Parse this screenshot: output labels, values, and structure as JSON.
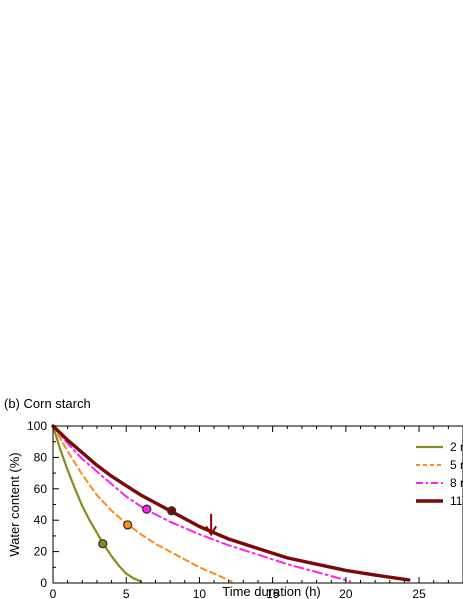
{
  "panel_label": "(b) Corn starch",
  "colors": {
    "s2": "#8a8a1f",
    "s5": "#ff8c1a",
    "s8": "#ff22ee",
    "s11": "#7a0a0a",
    "axis": "#000000",
    "arrow": "#8b0000"
  },
  "chart_data": {
    "type": "line",
    "title": "",
    "xlabel": "Time duration (h)",
    "ylabel": "Water content (%)",
    "xlim": [
      0,
      28
    ],
    "ylim": [
      0,
      100
    ],
    "x_ticks": [
      0,
      5,
      10,
      15,
      20,
      25
    ],
    "y_ticks": [
      0,
      20,
      40,
      60,
      80,
      100
    ],
    "grid": false,
    "legend_position": "right",
    "series": [
      {
        "name": "2 r",
        "color": "#8a8a1f",
        "dash": "solid",
        "x": [
          0,
          0.5,
          1,
          1.5,
          2,
          2.5,
          3,
          3.5,
          4,
          4.5,
          5,
          5.5,
          6
        ],
        "y": [
          100,
          85,
          72,
          60,
          49,
          40,
          32,
          24,
          17,
          11,
          6,
          3,
          1
        ],
        "marker": {
          "x": 3.4,
          "y": 25
        }
      },
      {
        "name": "5 r",
        "color": "#ff8c1a",
        "dash": "dashed",
        "x": [
          0,
          1,
          2,
          3,
          4,
          5,
          6,
          7,
          8,
          9,
          10,
          11,
          12.2
        ],
        "y": [
          100,
          84,
          69,
          56,
          46,
          38,
          31,
          25,
          20,
          15,
          10,
          6,
          1
        ],
        "marker": {
          "x": 5.1,
          "y": 37
        }
      },
      {
        "name": "8 r",
        "color": "#ff22ee",
        "dash": "dashdot",
        "x": [
          0,
          1,
          2,
          3,
          4,
          5,
          6.3,
          8,
          10,
          12,
          14,
          16,
          18,
          20.3
        ],
        "y": [
          100,
          89,
          79,
          71,
          63,
          55,
          47,
          39,
          31,
          24,
          18,
          12,
          7,
          1
        ],
        "marker": {
          "x": 6.4,
          "y": 47
        }
      },
      {
        "name": "11",
        "color": "#7a0a0a",
        "dash": "solid",
        "x": [
          0,
          1,
          2,
          3,
          4,
          5,
          6,
          7,
          8,
          9,
          10,
          11,
          12,
          14,
          16,
          18,
          20,
          22,
          24.3
        ],
        "y": [
          100,
          91,
          83,
          75,
          68,
          62,
          56,
          51,
          46,
          41,
          36,
          32,
          28,
          22,
          16,
          12,
          8,
          5,
          2
        ],
        "marker": {
          "x": 8.1,
          "y": 46
        }
      }
    ],
    "arrow": {
      "x": 10.8,
      "y_top": 44,
      "y_tip": 31
    }
  }
}
